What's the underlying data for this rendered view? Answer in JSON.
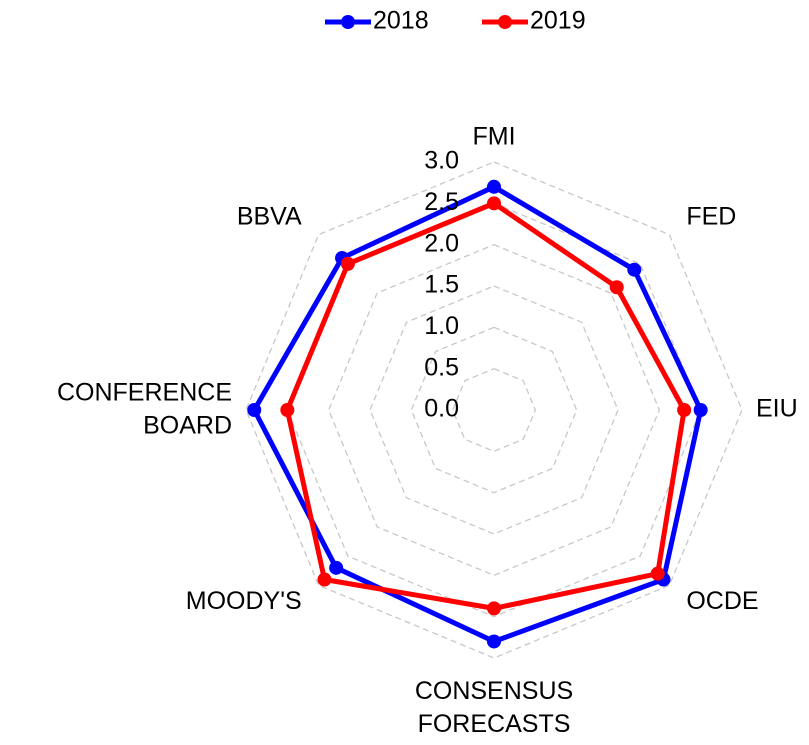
{
  "chart_data": {
    "type": "radar",
    "categories": [
      "FMI",
      "FED",
      "EIU",
      "OCDE",
      "CONSENSUS FORECASTS",
      "MOODY'S",
      "CONFERENCE BOARD",
      "BBVA"
    ],
    "series": [
      {
        "name": "2018",
        "color": "#0000ff",
        "values": [
          2.7,
          2.4,
          2.5,
          2.9,
          2.8,
          2.7,
          2.9,
          2.6
        ]
      },
      {
        "name": "2019",
        "color": "#ff0000",
        "values": [
          2.5,
          2.1,
          2.3,
          2.8,
          2.4,
          2.9,
          2.5,
          2.5
        ]
      }
    ],
    "ylim": [
      0,
      3
    ],
    "yticks": [
      {
        "value": 0,
        "label": "0.0"
      },
      {
        "value": 0.5,
        "label": "0.5"
      },
      {
        "value": 1,
        "label": "1.0"
      },
      {
        "value": 1.5,
        "label": "1.5"
      },
      {
        "value": 2,
        "label": "2.0"
      },
      {
        "value": 2.5,
        "label": "2.5"
      },
      {
        "value": 3,
        "label": "3.0"
      }
    ],
    "grid": true,
    "legend": "top"
  }
}
